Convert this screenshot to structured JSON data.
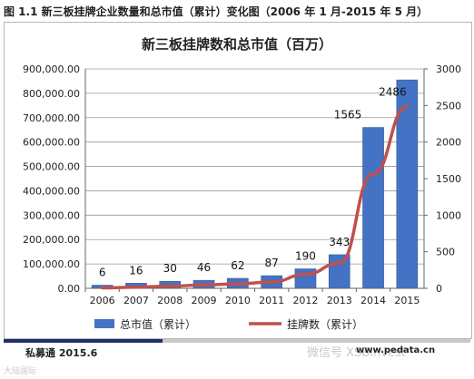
{
  "figure_caption": "图 1.1  新三板挂牌企业数量和总市值（累计）变化图（2006 年 1 月-2015 年 5 月）",
  "footer": {
    "source": "私募通 2015.6",
    "site": "www.pedata.cn"
  },
  "watermarks": [
    "微信号 XSBInvest",
    "大陆国际"
  ],
  "colors": {
    "bar": "#4472c4",
    "line": "#c0504d",
    "accent": "#1f2f6e"
  },
  "chart_data": {
    "type": "bar+line",
    "title": "新三板挂牌数和总市值（百万）",
    "categories": [
      "2006",
      "2007",
      "2008",
      "2009",
      "2010",
      "2011",
      "2012",
      "2013",
      "2014",
      "2015"
    ],
    "series": [
      {
        "name": "总市值（累计）",
        "type": "bar",
        "axis": "left",
        "values": [
          13000,
          21000,
          29000,
          33000,
          41000,
          52000,
          80000,
          138000,
          660000,
          855000
        ]
      },
      {
        "name": "挂牌数（累计）",
        "type": "line",
        "axis": "right",
        "values": [
          6,
          16,
          30,
          46,
          62,
          87,
          190,
          343,
          1565,
          2486
        ]
      }
    ],
    "y_left": {
      "ylim": [
        0,
        900000
      ],
      "ticks": [
        "0.00",
        "100,000.00",
        "200,000.00",
        "300,000.00",
        "400,000.00",
        "500,000.00",
        "600,000.00",
        "700,000.00",
        "800,000.00",
        "900,000.00"
      ]
    },
    "y_right": {
      "ylim": [
        0,
        3000
      ],
      "ticks": [
        "0",
        "500",
        "1000",
        "1500",
        "2000",
        "2500",
        "3000"
      ]
    },
    "data_labels": [
      "6",
      "16",
      "30",
      "46",
      "62",
      "87",
      "190",
      "343",
      "1565",
      "2486"
    ],
    "legend_position": "bottom",
    "grid": "horizontal"
  }
}
